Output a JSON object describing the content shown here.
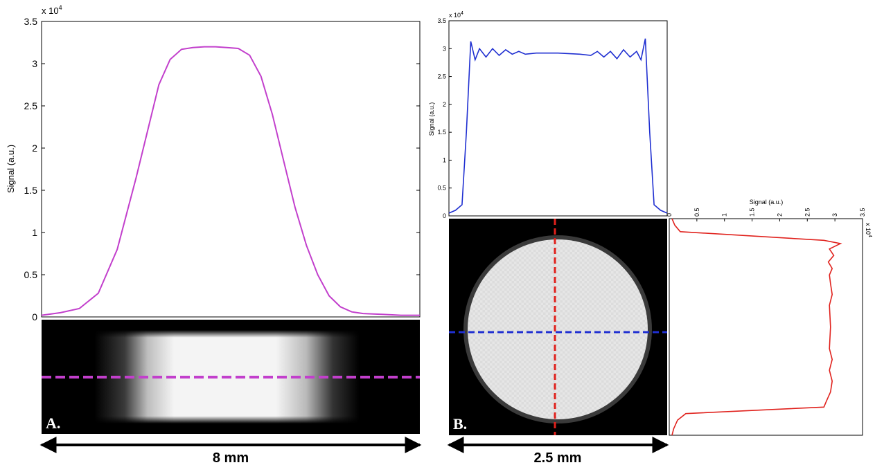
{
  "chart_data": [
    {
      "id": "A-profile",
      "type": "line",
      "ylabel": "Signal (a.u.)",
      "y_exponent_label": "x 10",
      "y_exponent": "4",
      "ylim": [
        0,
        3.5
      ],
      "yticks": [
        "0",
        "0.5",
        "1",
        "1.5",
        "2",
        "2.5",
        "3",
        "3.5"
      ],
      "xlim": [
        0,
        1
      ],
      "grid": false,
      "series": [
        {
          "color": "#c23fcc",
          "x": [
            0.0,
            0.05,
            0.1,
            0.15,
            0.2,
            0.25,
            0.28,
            0.31,
            0.34,
            0.37,
            0.4,
            0.43,
            0.46,
            0.49,
            0.52,
            0.55,
            0.58,
            0.61,
            0.64,
            0.67,
            0.7,
            0.73,
            0.76,
            0.79,
            0.82,
            0.85,
            0.9,
            0.95,
            1.0
          ],
          "y": [
            0.02,
            0.05,
            0.1,
            0.28,
            0.8,
            1.65,
            2.2,
            2.75,
            3.05,
            3.17,
            3.19,
            3.2,
            3.2,
            3.19,
            3.18,
            3.1,
            2.85,
            2.4,
            1.85,
            1.3,
            0.85,
            0.5,
            0.25,
            0.12,
            0.06,
            0.04,
            0.03,
            0.02,
            0.02
          ]
        }
      ]
    },
    {
      "id": "B-horizontal-profile",
      "type": "line",
      "ylabel": "Signal (a.u.)",
      "y_exponent_label": "x 10",
      "y_exponent": "4",
      "ylim": [
        0,
        3.5
      ],
      "yticks": [
        "0",
        "0.5",
        "1",
        "1.5",
        "2",
        "2.5",
        "3",
        "3.5"
      ],
      "xlim": [
        0,
        1
      ],
      "grid": false,
      "series": [
        {
          "color": "#1f2fd1",
          "x": [
            0.0,
            0.03,
            0.06,
            0.08,
            0.1,
            0.12,
            0.14,
            0.17,
            0.2,
            0.23,
            0.26,
            0.29,
            0.32,
            0.35,
            0.4,
            0.5,
            0.6,
            0.65,
            0.68,
            0.71,
            0.74,
            0.77,
            0.8,
            0.83,
            0.86,
            0.88,
            0.9,
            0.92,
            0.94,
            0.97,
            1.0
          ],
          "y": [
            0.05,
            0.1,
            0.2,
            1.5,
            3.13,
            2.8,
            3.0,
            2.85,
            3.0,
            2.88,
            2.98,
            2.9,
            2.95,
            2.9,
            2.92,
            2.92,
            2.9,
            2.88,
            2.95,
            2.85,
            2.95,
            2.82,
            2.98,
            2.85,
            2.95,
            2.8,
            3.18,
            1.5,
            0.2,
            0.1,
            0.05
          ]
        }
      ]
    },
    {
      "id": "B-vertical-profile",
      "type": "line",
      "orientation": "rotated",
      "xlabel": "Signal (a.u.)",
      "x_exponent_label": "x 10",
      "x_exponent": "4",
      "xlim": [
        0,
        3.5
      ],
      "xticks": [
        "0",
        "0.5",
        "1",
        "1.5",
        "2",
        "2.5",
        "3",
        "3.5"
      ],
      "grid": false,
      "series": [
        {
          "color": "#e0211c",
          "position": [
            0.0,
            0.03,
            0.06,
            0.1,
            0.115,
            0.14,
            0.17,
            0.2,
            0.23,
            0.26,
            0.3,
            0.35,
            0.4,
            0.5,
            0.6,
            0.65,
            0.7,
            0.75,
            0.8,
            0.84,
            0.87,
            0.9,
            0.93,
            0.97,
            1.0
          ],
          "value": [
            0.05,
            0.1,
            0.2,
            2.8,
            3.1,
            2.9,
            2.98,
            2.88,
            2.95,
            2.9,
            2.92,
            2.95,
            2.9,
            2.92,
            2.9,
            2.95,
            2.9,
            2.95,
            2.92,
            2.85,
            2.8,
            0.3,
            0.15,
            0.08,
            0.05
          ]
        }
      ]
    }
  ],
  "labels": {
    "panel_a": "A.",
    "panel_b": "B.",
    "scale_a": "8 mm",
    "scale_b": "2.5 mm"
  },
  "colors": {
    "a_line": "#c23fcc",
    "b_horizontal": "#1f2fd1",
    "b_vertical": "#e0211c"
  },
  "images": {
    "a": "grayscale slab with bright center band; magenta dashed line across",
    "b": "grayscale circular cross-section; red vertical and blue horizontal dashed lines"
  }
}
